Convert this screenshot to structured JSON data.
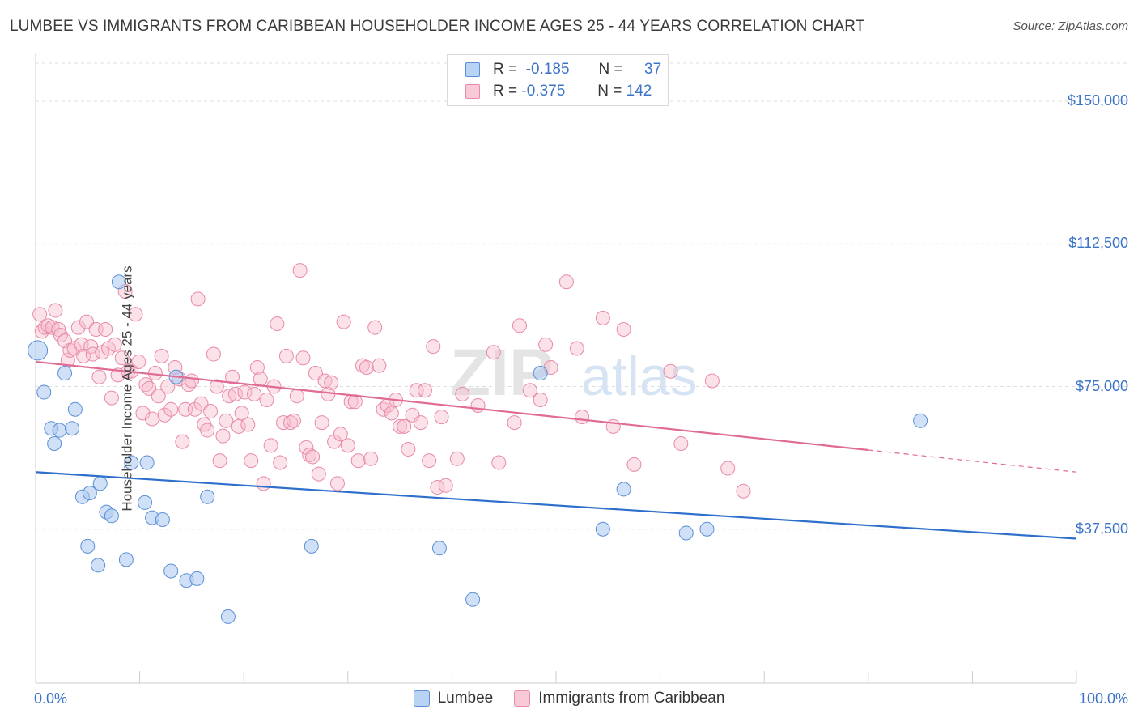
{
  "title": "LUMBEE VS IMMIGRANTS FROM CARIBBEAN HOUSEHOLDER INCOME AGES 25 - 44 YEARS CORRELATION CHART",
  "source": "Source: ZipAtlas.com",
  "watermark": {
    "zip": "ZIP",
    "atlas": "atlas"
  },
  "legend": {
    "rows": [
      {
        "r_label": "R =",
        "r_value": "-0.185",
        "n_label": "N =",
        "n_value": "37"
      },
      {
        "r_label": "R =",
        "r_value": "-0.375",
        "n_label": "N =",
        "n_value": "142"
      }
    ]
  },
  "colors": {
    "lumbee_fill": "#a9c8f0",
    "lumbee_stroke": "#5b8fd6",
    "lumbee_line": "#2f6fcc",
    "carib_fill": "#f7bccd",
    "carib_stroke": "#e88aa8",
    "carib_line": "#e06b95",
    "tick_text": "#3b73c8",
    "grid": "#dddddd"
  },
  "chart_data": {
    "type": "scatter",
    "ylabel": "Householder Income Ages 25 - 44 years",
    "x_tick_labels": [
      "0.0%",
      "100.0%"
    ],
    "xlim": [
      0,
      100
    ],
    "ylim": [
      0,
      160000
    ],
    "y_ticks": [
      {
        "value": 37500,
        "label": "$37,500"
      },
      {
        "value": 75000,
        "label": "$75,000"
      },
      {
        "value": 112500,
        "label": "$112,500"
      },
      {
        "value": 150000,
        "label": "$150,000"
      }
    ],
    "series": [
      {
        "name": "Lumbee",
        "points": [
          [
            0.2,
            84500
          ],
          [
            0.8,
            73500
          ],
          [
            1.5,
            64000
          ],
          [
            1.8,
            60000
          ],
          [
            2.3,
            63500
          ],
          [
            2.8,
            78500
          ],
          [
            3.5,
            64000
          ],
          [
            3.8,
            69000
          ],
          [
            4.5,
            46000
          ],
          [
            5.0,
            33000
          ],
          [
            5.2,
            47000
          ],
          [
            6.0,
            28000
          ],
          [
            6.2,
            49500
          ],
          [
            6.8,
            42000
          ],
          [
            7.3,
            41000
          ],
          [
            8.0,
            102500
          ],
          [
            8.7,
            29500
          ],
          [
            9.2,
            55000
          ],
          [
            10.5,
            44500
          ],
          [
            10.7,
            55000
          ],
          [
            11.2,
            40500
          ],
          [
            12.2,
            40000
          ],
          [
            13.0,
            26500
          ],
          [
            13.5,
            77500
          ],
          [
            14.5,
            24000
          ],
          [
            15.5,
            24500
          ],
          [
            16.5,
            46000
          ],
          [
            18.5,
            14500
          ],
          [
            26.5,
            33000
          ],
          [
            38.8,
            32500
          ],
          [
            42.0,
            19000
          ],
          [
            48.5,
            78500
          ],
          [
            54.5,
            37500
          ],
          [
            56.5,
            48000
          ],
          [
            62.5,
            36500
          ],
          [
            64.5,
            37500
          ],
          [
            85.0,
            66000
          ]
        ]
      },
      {
        "name": "Immigrants from Caribbean",
        "points": [
          [
            0.4,
            94000
          ],
          [
            0.6,
            89500
          ],
          [
            0.9,
            90500
          ],
          [
            1.2,
            91000
          ],
          [
            1.6,
            90500
          ],
          [
            1.9,
            95000
          ],
          [
            2.2,
            90000
          ],
          [
            2.4,
            88500
          ],
          [
            2.8,
            87000
          ],
          [
            3.1,
            82000
          ],
          [
            3.3,
            84500
          ],
          [
            3.7,
            85000
          ],
          [
            4.1,
            90500
          ],
          [
            4.4,
            86000
          ],
          [
            4.6,
            83000
          ],
          [
            4.9,
            92000
          ],
          [
            5.3,
            85500
          ],
          [
            5.5,
            83500
          ],
          [
            5.8,
            90000
          ],
          [
            6.1,
            77500
          ],
          [
            6.4,
            84000
          ],
          [
            6.7,
            90000
          ],
          [
            7.0,
            85000
          ],
          [
            7.3,
            72000
          ],
          [
            7.6,
            86000
          ],
          [
            7.9,
            78000
          ],
          [
            8.3,
            82500
          ],
          [
            8.6,
            100000
          ],
          [
            8.9,
            79000
          ],
          [
            9.2,
            79000
          ],
          [
            9.6,
            94000
          ],
          [
            9.9,
            81500
          ],
          [
            10.3,
            68000
          ],
          [
            10.6,
            75500
          ],
          [
            10.9,
            74500
          ],
          [
            11.2,
            66500
          ],
          [
            11.5,
            78500
          ],
          [
            11.8,
            72500
          ],
          [
            12.1,
            83000
          ],
          [
            12.4,
            67500
          ],
          [
            12.7,
            75000
          ],
          [
            13.0,
            69000
          ],
          [
            13.4,
            80000
          ],
          [
            13.8,
            77000
          ],
          [
            14.1,
            60500
          ],
          [
            14.4,
            69000
          ],
          [
            14.7,
            75500
          ],
          [
            15.0,
            76500
          ],
          [
            15.3,
            69000
          ],
          [
            15.6,
            98000
          ],
          [
            15.9,
            70500
          ],
          [
            16.2,
            65000
          ],
          [
            16.5,
            63500
          ],
          [
            16.8,
            68500
          ],
          [
            17.1,
            83500
          ],
          [
            17.4,
            75000
          ],
          [
            17.7,
            55500
          ],
          [
            18.0,
            62000
          ],
          [
            18.3,
            66000
          ],
          [
            18.6,
            72500
          ],
          [
            18.9,
            77500
          ],
          [
            19.2,
            73000
          ],
          [
            19.5,
            64500
          ],
          [
            19.8,
            68000
          ],
          [
            20.1,
            73500
          ],
          [
            20.4,
            65000
          ],
          [
            20.7,
            55500
          ],
          [
            21.0,
            73000
          ],
          [
            21.3,
            80000
          ],
          [
            21.6,
            77000
          ],
          [
            21.9,
            49500
          ],
          [
            22.2,
            71500
          ],
          [
            22.6,
            59500
          ],
          [
            22.9,
            75000
          ],
          [
            23.2,
            91500
          ],
          [
            23.5,
            55000
          ],
          [
            23.8,
            65500
          ],
          [
            24.1,
            83000
          ],
          [
            24.5,
            65500
          ],
          [
            24.8,
            66000
          ],
          [
            25.1,
            72500
          ],
          [
            25.4,
            105500
          ],
          [
            25.7,
            82500
          ],
          [
            26.0,
            59000
          ],
          [
            26.3,
            57000
          ],
          [
            26.6,
            56500
          ],
          [
            26.9,
            78500
          ],
          [
            27.2,
            52000
          ],
          [
            27.5,
            65500
          ],
          [
            27.8,
            76500
          ],
          [
            28.1,
            73000
          ],
          [
            28.4,
            76000
          ],
          [
            28.7,
            60500
          ],
          [
            29.0,
            49500
          ],
          [
            29.3,
            62500
          ],
          [
            29.6,
            92000
          ],
          [
            30.0,
            59500
          ],
          [
            30.3,
            71000
          ],
          [
            30.7,
            71000
          ],
          [
            31.0,
            55500
          ],
          [
            31.4,
            80500
          ],
          [
            31.8,
            80000
          ],
          [
            32.2,
            56000
          ],
          [
            32.6,
            90500
          ],
          [
            33.0,
            80500
          ],
          [
            33.4,
            69000
          ],
          [
            33.8,
            70000
          ],
          [
            34.2,
            68000
          ],
          [
            34.6,
            71500
          ],
          [
            35.0,
            64500
          ],
          [
            35.4,
            64500
          ],
          [
            35.8,
            58500
          ],
          [
            36.2,
            67500
          ],
          [
            36.6,
            74000
          ],
          [
            37.0,
            65500
          ],
          [
            37.4,
            74000
          ],
          [
            37.8,
            55500
          ],
          [
            38.2,
            85500
          ],
          [
            38.6,
            48500
          ],
          [
            39.0,
            67000
          ],
          [
            39.4,
            49000
          ],
          [
            40.5,
            56000
          ],
          [
            41.0,
            73000
          ],
          [
            42.5,
            70000
          ],
          [
            44.0,
            84000
          ],
          [
            44.5,
            55000
          ],
          [
            46.0,
            65500
          ],
          [
            46.5,
            91000
          ],
          [
            47.5,
            74000
          ],
          [
            48.5,
            71500
          ],
          [
            49.0,
            86000
          ],
          [
            49.5,
            80000
          ],
          [
            51.0,
            102500
          ],
          [
            52.0,
            85000
          ],
          [
            52.5,
            67000
          ],
          [
            54.5,
            93000
          ],
          [
            55.5,
            64500
          ],
          [
            56.5,
            90000
          ],
          [
            57.5,
            54500
          ],
          [
            61.0,
            79000
          ],
          [
            62.0,
            60000
          ],
          [
            65.0,
            76500
          ],
          [
            66.5,
            53500
          ],
          [
            68.0,
            47500
          ]
        ]
      }
    ],
    "trend_lines": [
      {
        "series": "Lumbee",
        "x0": 0,
        "y0": 52500,
        "x1": 100,
        "y1": 35000,
        "dashed_from": null
      },
      {
        "series": "Immigrants from Caribbean",
        "x0": 0,
        "y0": 81500,
        "x1": 100,
        "y1": 52500,
        "dashed_from": 80
      }
    ]
  },
  "bottom_legend": [
    {
      "label": "Lumbee"
    },
    {
      "label": "Immigrants from Caribbean"
    }
  ]
}
